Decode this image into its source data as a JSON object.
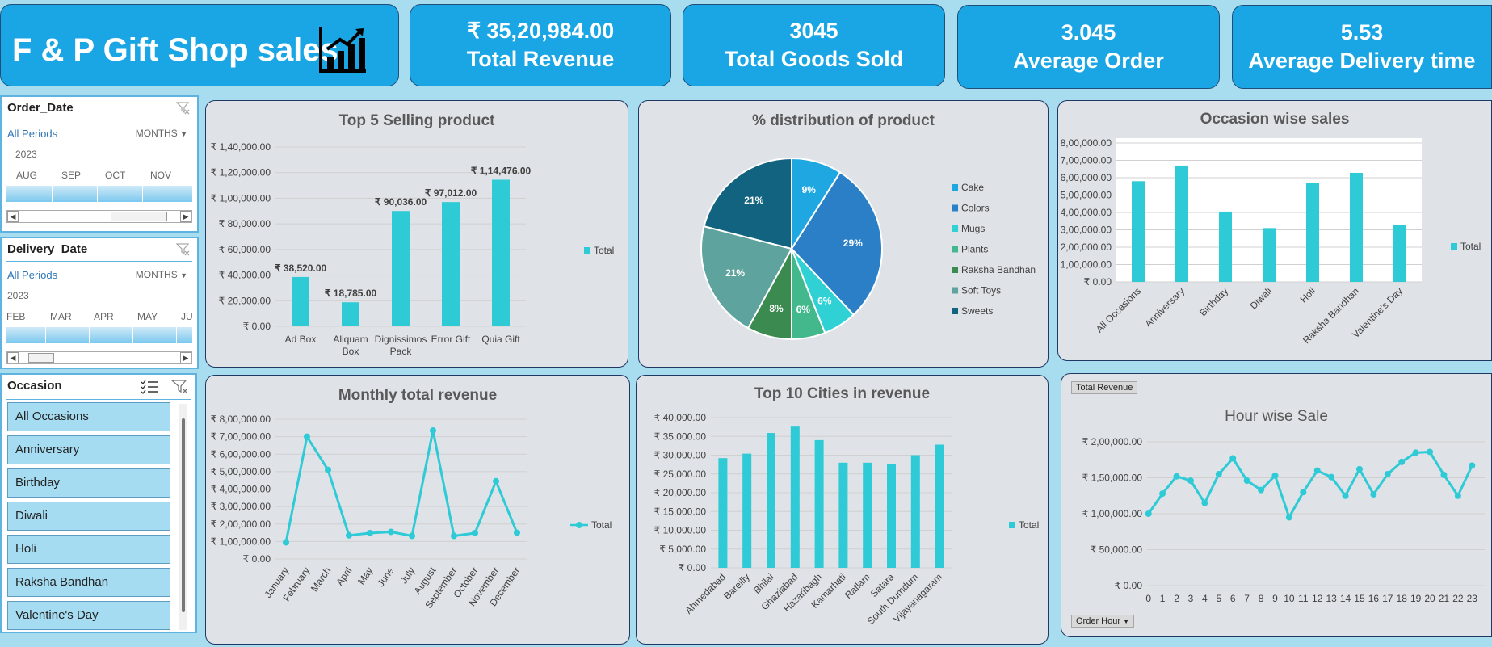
{
  "header": {
    "title": "F & P Gift Shop sales",
    "kpis": [
      {
        "value": "₹ 35,20,984.00",
        "label": "Total Revenue"
      },
      {
        "value": "3045",
        "label": "Total Goods Sold"
      },
      {
        "value": "3.045",
        "label": "Average Order"
      },
      {
        "value": "5.53",
        "label": "Average Delivery time"
      }
    ]
  },
  "colors": {
    "bar": "#2ecad6",
    "header": "#1aa6e4"
  },
  "slicers": {
    "order_date": {
      "title": "Order_Date",
      "all_periods": "All Periods",
      "level": "MONTHS",
      "year": "2023",
      "months": [
        "AUG",
        "SEP",
        "OCT",
        "NOV"
      ]
    },
    "delivery_date": {
      "title": "Delivery_Date",
      "all_periods": "All Periods",
      "level": "MONTHS",
      "year": "2023",
      "months": [
        "FEB",
        "MAR",
        "APR",
        "MAY",
        "JU"
      ]
    },
    "occasion": {
      "title": "Occasion",
      "items": [
        "All Occasions",
        "Anniversary",
        "Birthday",
        "Diwali",
        "Holi",
        "Raksha Bandhan",
        "Valentine's Day"
      ]
    }
  },
  "chart_data": [
    {
      "id": "top5",
      "type": "bar",
      "title": "Top 5 Selling product",
      "categories": [
        "Ad Box",
        "Aliquam Box",
        "Dignissimos Pack",
        "Error Gift",
        "Quia Gift"
      ],
      "category_lines": [
        [
          "Ad Box"
        ],
        [
          "Aliquam",
          "Box"
        ],
        [
          "Dignissimos",
          "Pack"
        ],
        [
          "Error Gift"
        ],
        [
          "Quia Gift"
        ]
      ],
      "series": [
        {
          "name": "Total",
          "values": [
            38520,
            18785,
            90036,
            97012,
            114476
          ]
        }
      ],
      "data_labels": [
        "₹ 38,520.00",
        "₹ 18,785.00",
        "₹ 90,036.00",
        "₹ 97,012.00",
        "₹ 1,14,476.00"
      ],
      "ylim": [
        0,
        140000
      ],
      "yticks": [
        "₹ 0.00",
        "₹ 20,000.00",
        "₹ 40,000.00",
        "₹ 60,000.00",
        "₹ 80,000.00",
        "₹ 1,00,000.00",
        "₹ 1,20,000.00",
        "₹ 1,40,000.00"
      ],
      "legend": "right",
      "grid": true
    },
    {
      "id": "dist",
      "type": "pie",
      "title": "% distribution of product",
      "labels": [
        "Cake",
        "Colors",
        "Mugs",
        "Plants",
        "Raksha Bandhan",
        "Soft Toys",
        "Sweets"
      ],
      "values": [
        9,
        29,
        6,
        6,
        8,
        21,
        21
      ],
      "data_labels": [
        "9%",
        "29%",
        "6%",
        "6%",
        "8%",
        "21%",
        "21%"
      ],
      "colors": [
        "#1ea7e1",
        "#2a7fc7",
        "#2fd1d4",
        "#43b88c",
        "#3b8a4f",
        "#5fa39e",
        "#12637f"
      ],
      "legend": "right"
    },
    {
      "id": "occasion",
      "type": "bar",
      "title": "Occasion wise sales",
      "categories": [
        "All Occasions",
        "Anniversary",
        "Birthday",
        "Diwali",
        "Holi",
        "Raksha Bandhan",
        "Valentine's Day"
      ],
      "series": [
        {
          "name": "Total",
          "values": [
            580000,
            670000,
            405000,
            310000,
            572000,
            628000,
            327000
          ]
        }
      ],
      "ylim": [
        0,
        800000
      ],
      "yticks": [
        "₹ 0.00",
        "₹ 1,00,000.00",
        "₹ 2,00,000.00",
        "₹ 3,00,000.00",
        "₹ 4,00,000.00",
        "₹ 5,00,000.00",
        "₹ 6,00,000.00",
        "₹ 7,00,000.00",
        "₹ 8,00,000.00"
      ],
      "legend": "right",
      "grid": true
    },
    {
      "id": "monthly",
      "type": "line",
      "title": "Monthly total revenue",
      "categories": [
        "January",
        "February",
        "March",
        "April",
        "May",
        "June",
        "July",
        "August",
        "September",
        "October",
        "November",
        "December"
      ],
      "series": [
        {
          "name": "Total",
          "values": [
            95000,
            700000,
            510000,
            135000,
            148000,
            155000,
            132000,
            735000,
            132000,
            148000,
            445000,
            150000
          ]
        }
      ],
      "ylim": [
        0,
        800000
      ],
      "yticks": [
        "₹ 0.00",
        "₹ 1,00,000.00",
        "₹ 2,00,000.00",
        "₹ 3,00,000.00",
        "₹ 4,00,000.00",
        "₹ 5,00,000.00",
        "₹ 6,00,000.00",
        "₹ 7,00,000.00",
        "₹ 8,00,000.00"
      ],
      "legend": "right",
      "grid": true
    },
    {
      "id": "cities",
      "type": "bar",
      "title": "Top 10 Cities in revenue",
      "categories": [
        "Ahmedabad",
        "Bareilly",
        "Bhilai",
        "Ghaziabad",
        "Hazaribagh",
        "Kamarhati",
        "Ratlam",
        "Satara",
        "South Dumdum",
        "Vijayanagaram"
      ],
      "series": [
        {
          "name": "Total",
          "values": [
            29200,
            30400,
            35900,
            37600,
            34000,
            28000,
            28000,
            27600,
            30000,
            32800
          ]
        }
      ],
      "ylim": [
        0,
        40000
      ],
      "yticks": [
        "₹ 0.00",
        "₹ 5,000.00",
        "₹ 10,000.00",
        "₹ 15,000.00",
        "₹ 20,000.00",
        "₹ 25,000.00",
        "₹ 30,000.00",
        "₹ 35,000.00",
        "₹ 40,000.00"
      ],
      "legend": "right",
      "grid": true
    },
    {
      "id": "hour",
      "type": "line",
      "title": "Hour wise Sale",
      "field_button": "Total Revenue",
      "axis_button": "Order Hour",
      "categories": [
        "0",
        "1",
        "2",
        "3",
        "4",
        "5",
        "6",
        "7",
        "8",
        "9",
        "10",
        "11",
        "12",
        "13",
        "14",
        "15",
        "16",
        "17",
        "18",
        "19",
        "20",
        "21",
        "22",
        "23"
      ],
      "series": [
        {
          "values": [
            100000,
            128000,
            152000,
            146000,
            115000,
            155000,
            177000,
            146000,
            133000,
            153000,
            95000,
            130000,
            160000,
            151000,
            125000,
            162000,
            127000,
            155000,
            172000,
            185000,
            186000,
            154000,
            125000,
            167000
          ]
        }
      ],
      "ylim": [
        0,
        200000
      ],
      "yticks": [
        "₹ 0.00",
        "₹ 50,000.00",
        "₹ 1,00,000.00",
        "₹ 1,50,000.00",
        "₹ 2,00,000.00"
      ],
      "grid": true
    }
  ]
}
